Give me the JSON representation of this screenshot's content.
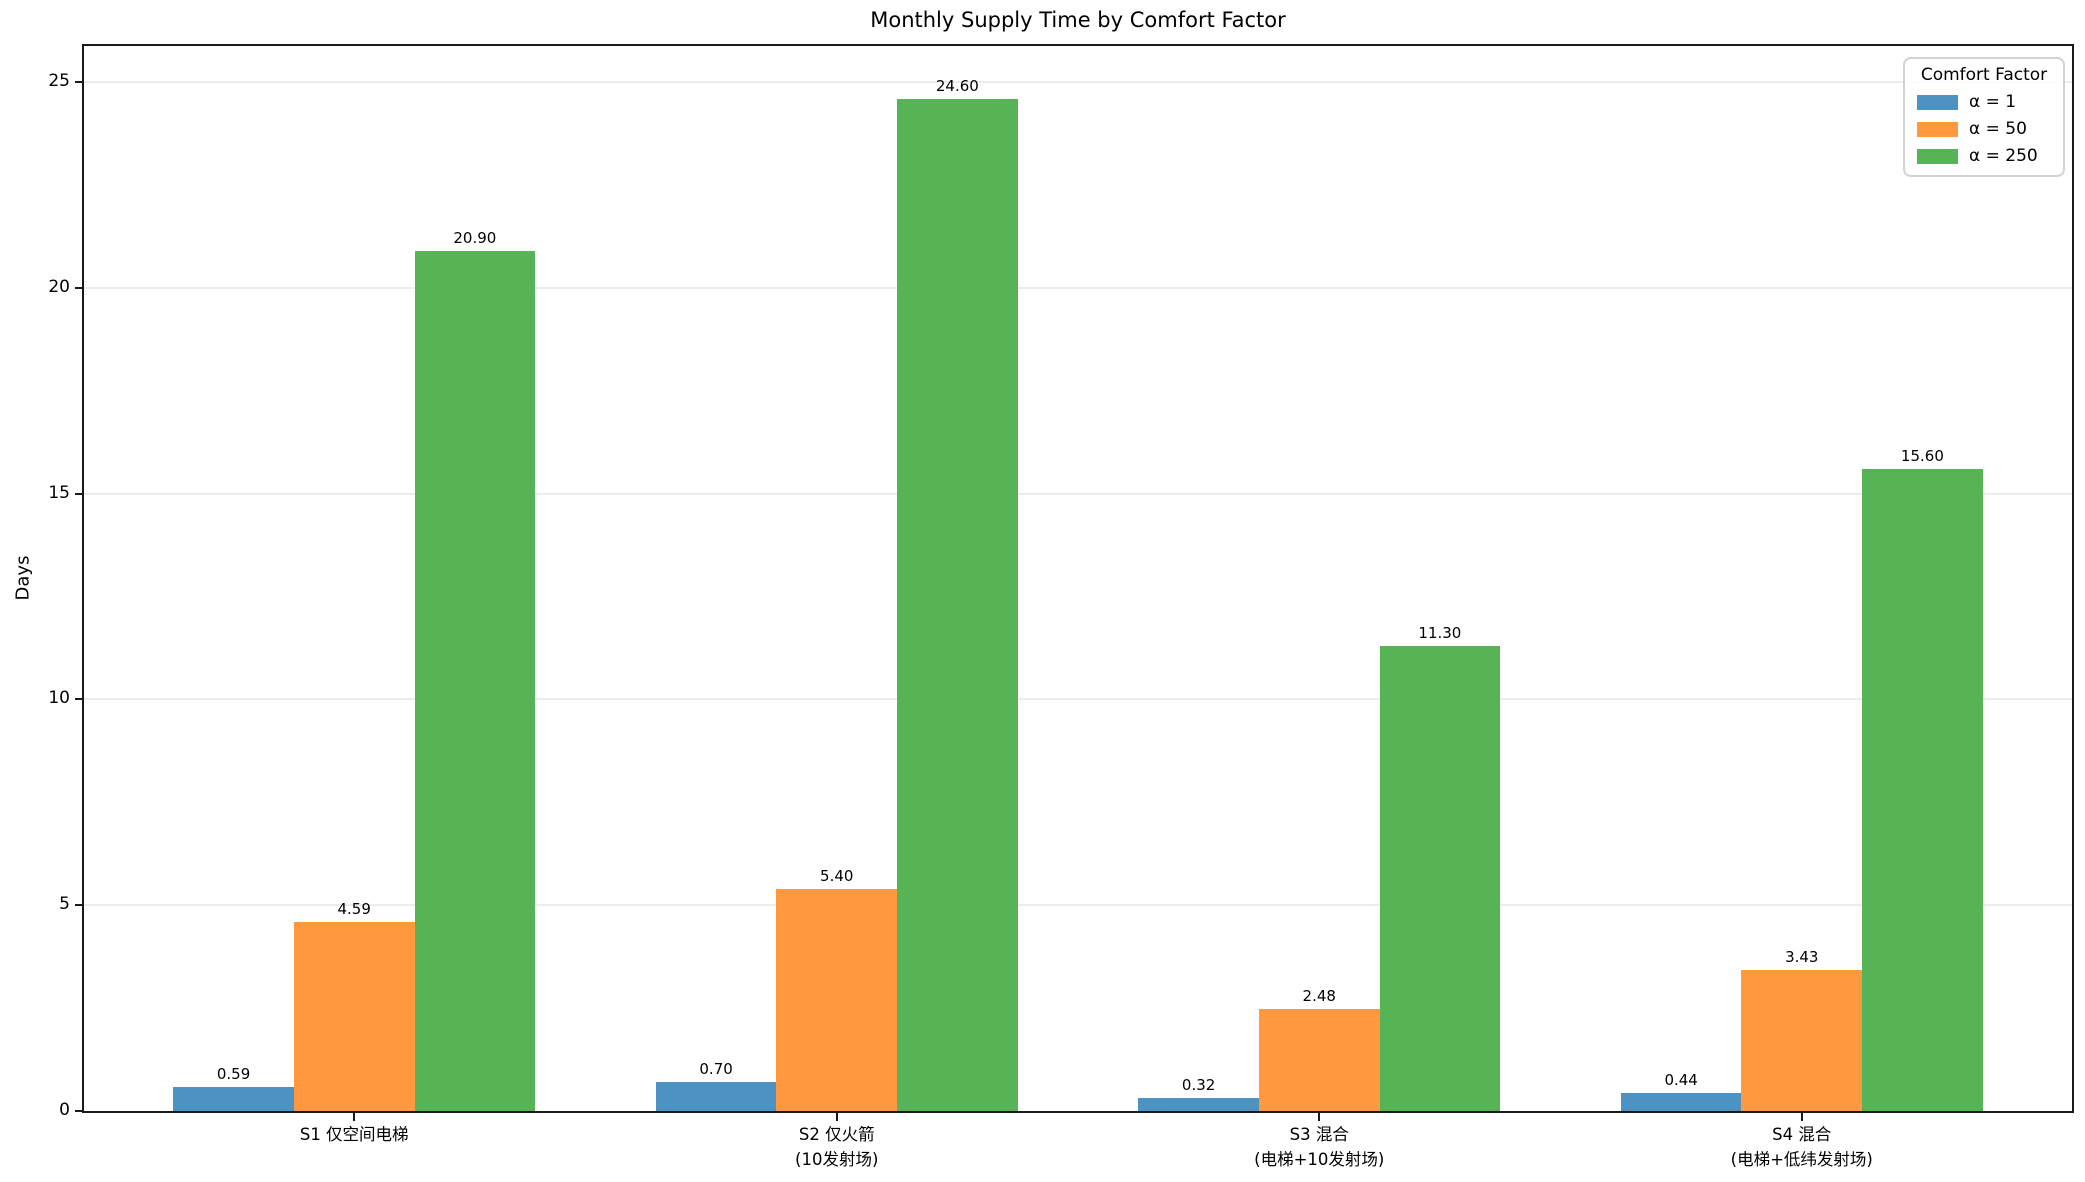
{
  "chart_data": {
    "type": "bar",
    "title": "Monthly Supply Time by Comfort Factor",
    "ylabel": "Days",
    "xlabel": "",
    "categories": [
      "S1 仅空间电梯",
      "S2 仅火箭\n(10发射场)",
      "S3 混合\n(电梯+10发射场)",
      "S4 混合\n(电梯+低纬发射场)"
    ],
    "series": [
      {
        "name": "α = 1",
        "color": "#4C92C3",
        "values": [
          0.59,
          0.7,
          0.32,
          0.44
        ]
      },
      {
        "name": "α = 50",
        "color": "#FF983E",
        "values": [
          4.59,
          5.4,
          2.48,
          3.43
        ]
      },
      {
        "name": "α = 250",
        "color": "#56B356",
        "values": [
          20.9,
          24.6,
          11.3,
          15.6
        ]
      }
    ],
    "legend": {
      "title": "Comfort Factor",
      "position": "upper-right"
    },
    "yticks": [
      0,
      5,
      10,
      15,
      20,
      25
    ],
    "ylim": [
      0,
      25.88
    ],
    "grid": "y",
    "grid_color": "#ececec",
    "spine_color": "#1a1a1a",
    "bar_labels": true,
    "bar_label_decimals": 2
  }
}
